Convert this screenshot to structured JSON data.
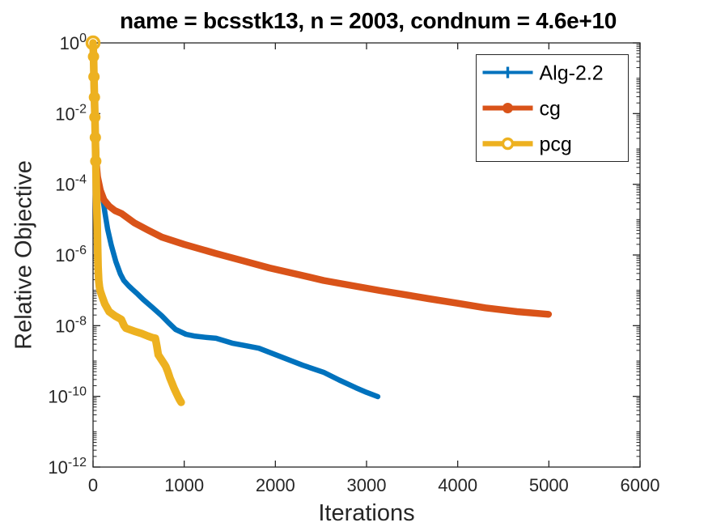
{
  "figure": {
    "background": "#ffffff",
    "axis_color": "#262626",
    "title_color": "#000000"
  },
  "chart_data": {
    "type": "line",
    "title": "name = bcsstk13, n = 2003, condnum = 4.6e+10",
    "xlabel": "Iterations",
    "ylabel": "Relative Objective",
    "x_axis": {
      "min": 0,
      "max": 6000,
      "ticks": [
        0,
        1000,
        2000,
        3000,
        4000,
        5000,
        6000
      ],
      "tick_labels": [
        "0",
        "1000",
        "2000",
        "3000",
        "4000",
        "5000",
        "6000"
      ]
    },
    "y_axis": {
      "scale": "log",
      "min_exp": -12,
      "max_exp": 0,
      "tick_exps": [
        0,
        -2,
        -4,
        -6,
        -8,
        -10,
        -12
      ],
      "minor_ticks": true
    },
    "grid": false,
    "legend": {
      "position": "top-right",
      "border_color": "#262626",
      "background": "#ffffff"
    },
    "series": [
      {
        "name": "Alg-2.2",
        "color": "#0072BD",
        "marker": "plus",
        "line_width": 6.5,
        "legend_line_width": 4,
        "points": [
          [
            0,
            1
          ],
          [
            4,
            0.3
          ],
          [
            8,
            0.06
          ],
          [
            14,
            0.012
          ],
          [
            20,
            0.004
          ],
          [
            28,
            0.0012
          ],
          [
            38,
            0.00045
          ],
          [
            50,
            0.00022
          ],
          [
            65,
            0.00011
          ],
          [
            85,
            6.2e-05
          ],
          [
            106,
            4.4e-05
          ],
          [
            130,
            1.6e-05
          ],
          [
            160,
            5.4e-06
          ],
          [
            200,
            1.9e-06
          ],
          [
            250,
            6.5e-07
          ],
          [
            300,
            2.9e-07
          ],
          [
            337,
            1.9e-07
          ],
          [
            390,
            1.35e-07
          ],
          [
            426,
            1.1e-07
          ],
          [
            490,
            7.8e-08
          ],
          [
            550,
            5.5e-08
          ],
          [
            650,
            3.3e-08
          ],
          [
            754,
            1.9e-08
          ],
          [
            830,
            1.2e-08
          ],
          [
            905,
            7.8e-09
          ],
          [
            1020,
            5.7e-09
          ],
          [
            1109,
            5.1e-09
          ],
          [
            1230,
            4.7e-09
          ],
          [
            1349,
            4.4e-09
          ],
          [
            1526,
            3.2e-09
          ],
          [
            1680,
            2.7e-09
          ],
          [
            1819,
            2.3e-09
          ],
          [
            2085,
            1.25e-09
          ],
          [
            2300,
            7.6e-10
          ],
          [
            2529,
            4.8e-10
          ],
          [
            2700,
            2.9e-10
          ],
          [
            2884,
            1.75e-10
          ],
          [
            3000,
            1.3e-10
          ],
          [
            3123,
            9.8e-11
          ]
        ],
        "early_markers": []
      },
      {
        "name": "cg",
        "color": "#D95319",
        "marker": "filled-circle",
        "line_width": 8.5,
        "legend_line_width": 6,
        "points": [
          [
            0,
            1
          ],
          [
            4,
            0.4
          ],
          [
            8,
            0.1
          ],
          [
            12,
            0.032
          ],
          [
            16,
            0.012
          ],
          [
            21,
            0.0045
          ],
          [
            27,
            0.0017
          ],
          [
            35,
            0.00043
          ],
          [
            50,
            0.00016
          ],
          [
            80,
            6.8e-05
          ],
          [
            120,
            3.6e-05
          ],
          [
            177,
            2.4e-05
          ],
          [
            240,
            1.8e-05
          ],
          [
            310,
            1.5e-05
          ],
          [
            450,
            8.2e-06
          ],
          [
            600,
            5.1e-06
          ],
          [
            754,
            3.2e-06
          ],
          [
            1000,
            2e-06
          ],
          [
            1349,
            1.1e-06
          ],
          [
            1650,
            6.8e-07
          ],
          [
            1934,
            4.3e-07
          ],
          [
            2250,
            2.8e-07
          ],
          [
            2529,
            1.9e-07
          ],
          [
            2850,
            1.35e-07
          ],
          [
            3150,
            9.8e-08
          ],
          [
            3450,
            7.3e-08
          ],
          [
            3682,
            5.8e-08
          ],
          [
            4000,
            4.3e-08
          ],
          [
            4303,
            3.2e-08
          ],
          [
            4650,
            2.5e-08
          ],
          [
            4995,
            2.1e-08
          ]
        ],
        "early_markers": [
          [
            2,
            0.65
          ],
          [
            7,
            0.16
          ],
          [
            12,
            0.032
          ],
          [
            17,
            0.0095
          ],
          [
            22,
            0.0036
          ],
          [
            27,
            0.0017
          ]
        ]
      },
      {
        "name": "pcg",
        "color": "#EDB120",
        "marker": "open-circle",
        "line_width": 9.5,
        "legend_line_width": 6.5,
        "points": [
          [
            0,
            1
          ],
          [
            5,
            0.41
          ],
          [
            10,
            0.11
          ],
          [
            15,
            0.029
          ],
          [
            20,
            0.0079
          ],
          [
            25,
            0.0021
          ],
          [
            30,
            0.00045
          ],
          [
            35,
            0.00011
          ],
          [
            40,
            3.1e-05
          ],
          [
            45,
            8e-06
          ],
          [
            50,
            2e-06
          ],
          [
            55,
            4.6e-07
          ],
          [
            62,
            1.9e-07
          ],
          [
            70,
            1.25e-07
          ],
          [
            80,
            9.4e-08
          ],
          [
            100,
            6.6e-08
          ],
          [
            130,
            4.1e-08
          ],
          [
            177,
            2.5e-08
          ],
          [
            240,
            1.9e-08
          ],
          [
            310,
            1.5e-08
          ],
          [
            340,
            1e-08
          ],
          [
            360,
            8.5e-09
          ],
          [
            450,
            7e-09
          ],
          [
            532,
            6e-09
          ],
          [
            600,
            5.1e-09
          ],
          [
            650,
            4.6e-09
          ],
          [
            683,
            4.4e-09
          ],
          [
            700,
            2.6e-09
          ],
          [
            715,
            1.5e-09
          ],
          [
            754,
            1.05e-09
          ],
          [
            785,
            8e-10
          ],
          [
            799,
            6.9e-10
          ],
          [
            820,
            5e-10
          ],
          [
            843,
            3.3e-10
          ],
          [
            865,
            2.4e-10
          ],
          [
            887,
            1.75e-10
          ],
          [
            910,
            1.3e-10
          ],
          [
            932,
            9.8e-11
          ],
          [
            950,
            8e-11
          ],
          [
            967,
            6.8e-11
          ]
        ],
        "early_markers": [
          [
            0,
            1
          ],
          [
            5,
            0.41
          ],
          [
            10,
            0.11
          ],
          [
            15,
            0.029
          ],
          [
            20,
            0.0079
          ],
          [
            25,
            0.0021
          ],
          [
            30,
            0.00045
          ]
        ]
      }
    ]
  }
}
